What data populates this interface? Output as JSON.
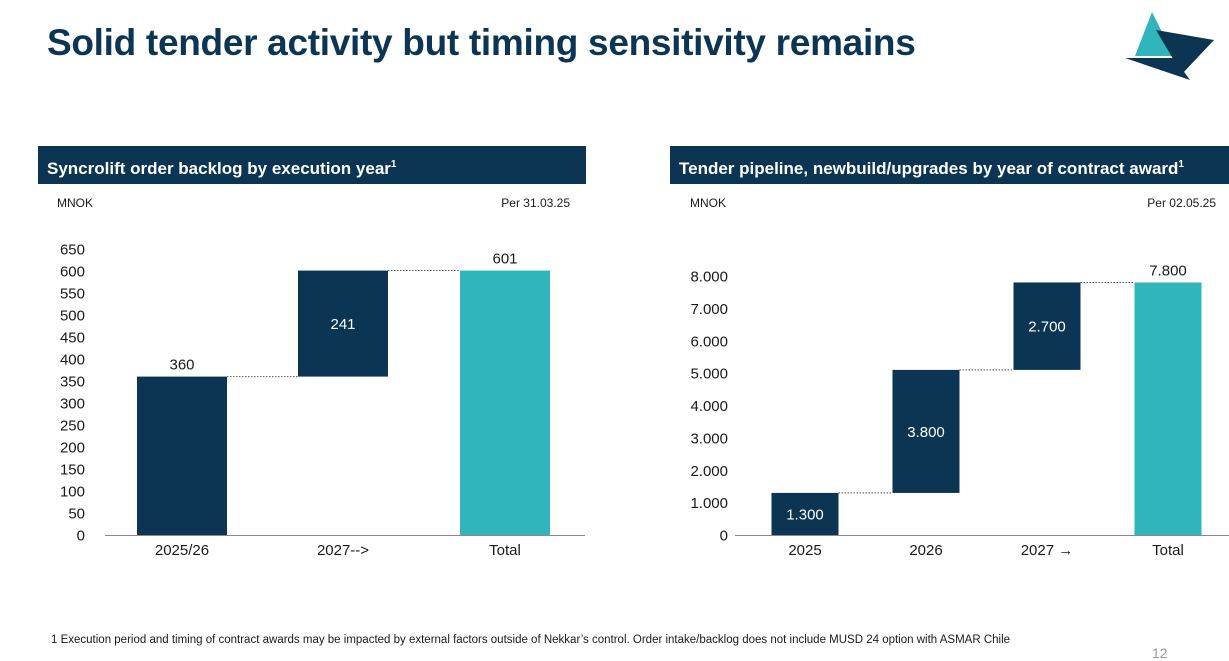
{
  "title": "Solid tender activity but timing sensitivity remains",
  "colors": {
    "navy": "#0b3552",
    "teal": "#2fb5bb",
    "accent_tri": "#2fb5bb"
  },
  "logo_icon": "triangle-sail-logo-icon",
  "left_panel": {
    "header": "Syncrolift order backlog by execution year",
    "header_sup": "1",
    "unit": "MNOK",
    "as_of": "Per 31.03.25"
  },
  "right_panel": {
    "header": "Tender pipeline, newbuild/upgrades by year of contract award",
    "header_sup": "1",
    "unit": "MNOK",
    "as_of": "Per 02.05.25"
  },
  "chart_data": [
    {
      "type": "bar",
      "subtype": "waterfall",
      "categories": [
        "2025/26",
        "2027-->",
        "Total"
      ],
      "values": [
        360,
        241,
        601
      ],
      "bases": [
        0,
        360,
        0
      ],
      "value_labels": [
        "360",
        "241",
        "601"
      ],
      "ylim": [
        0,
        650
      ],
      "yticks": [
        0,
        50,
        100,
        150,
        200,
        250,
        300,
        350,
        400,
        450,
        500,
        550,
        600,
        650
      ],
      "ytick_labels": [
        "0",
        "50",
        "100",
        "150",
        "200",
        "250",
        "300",
        "350",
        "400",
        "450",
        "500",
        "550",
        "600",
        "650"
      ],
      "colors": [
        "#0b3552",
        "#0b3552",
        "#2fb5bb"
      ],
      "label_inside": [
        false,
        true,
        false
      ],
      "grid": false
    },
    {
      "type": "bar",
      "subtype": "waterfall",
      "categories": [
        "2025",
        "2026",
        "2027 →",
        "Total"
      ],
      "values": [
        1300,
        3800,
        2700,
        7800
      ],
      "bases": [
        0,
        1300,
        5100,
        0
      ],
      "value_labels": [
        "1.300",
        "3.800",
        "2.700",
        "7.800"
      ],
      "ylim": [
        0,
        8000
      ],
      "yticks": [
        0,
        1000,
        2000,
        3000,
        4000,
        5000,
        6000,
        7000,
        8000
      ],
      "ytick_labels": [
        "0",
        "1.000",
        "2.000",
        "3.000",
        "4.000",
        "5.000",
        "6.000",
        "7.000",
        "8.000"
      ],
      "colors": [
        "#0b3552",
        "#0b3552",
        "#0b3552",
        "#2fb5bb"
      ],
      "label_inside": [
        true,
        true,
        true,
        false
      ],
      "grid": false
    }
  ],
  "footnote": "1 Execution period and timing of contract awards may be impacted by external factors outside of Nekkar’s control. Order intake/backlog does not include MUSD 24 option with ASMAR Chile",
  "page_number": "12"
}
